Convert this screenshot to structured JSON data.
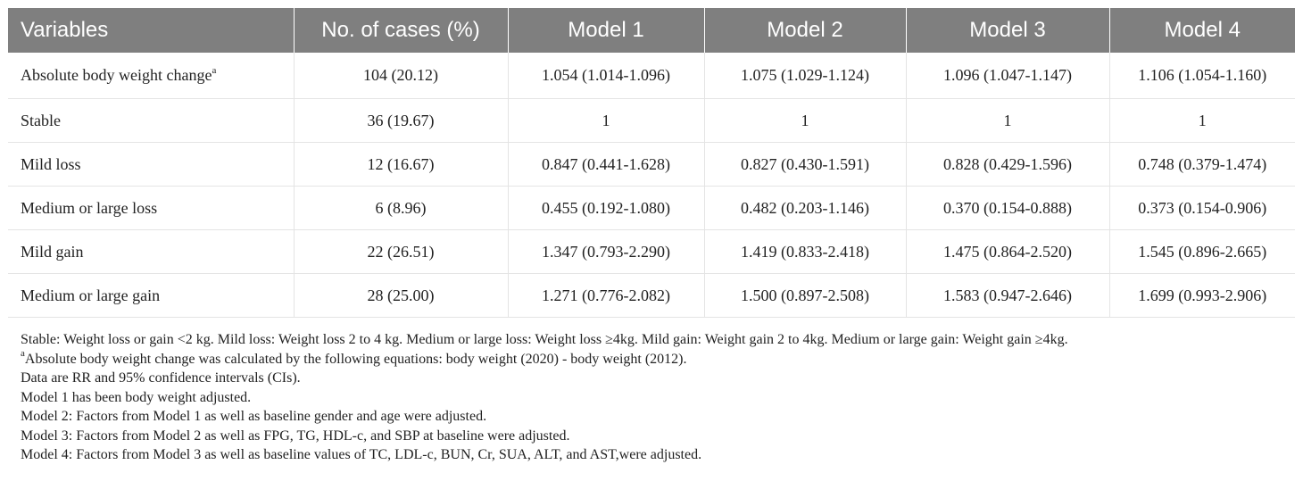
{
  "table": {
    "headers": [
      "Variables",
      "No. of cases (%)",
      "Model 1",
      "Model 2",
      "Model 3",
      "Model 4"
    ],
    "rows": [
      {
        "variable": "Absolute body weight change",
        "sup": "a",
        "cases": "104 (20.12)",
        "m1": "1.054 (1.014-1.096)",
        "m2": "1.075 (1.029-1.124)",
        "m3": "1.096 (1.047-1.147)",
        "m4": "1.106 (1.054-1.160)"
      },
      {
        "variable": "Stable",
        "sup": "",
        "cases": "36 (19.67)",
        "m1": "1",
        "m2": "1",
        "m3": "1",
        "m4": "1"
      },
      {
        "variable": "Mild loss",
        "sup": "",
        "cases": "12 (16.67)",
        "m1": "0.847 (0.441-1.628)",
        "m2": "0.827 (0.430-1.591)",
        "m3": "0.828 (0.429-1.596)",
        "m4": "0.748 (0.379-1.474)"
      },
      {
        "variable": "Medium or large loss",
        "sup": "",
        "cases": "6 (8.96)",
        "m1": "0.455 (0.192-1.080)",
        "m2": "0.482 (0.203-1.146)",
        "m3": "0.370 (0.154-0.888)",
        "m4": "0.373 (0.154-0.906)"
      },
      {
        "variable": "Mild gain",
        "sup": "",
        "cases": "22 (26.51)",
        "m1": "1.347 (0.793-2.290)",
        "m2": "1.419 (0.833-2.418)",
        "m3": "1.475 (0.864-2.520)",
        "m4": "1.545 (0.896-2.665)"
      },
      {
        "variable": "Medium or large gain",
        "sup": "",
        "cases": "28 (25.00)",
        "m1": "1.271 (0.776-2.082)",
        "m2": "1.500 (0.897-2.508)",
        "m3": "1.583 (0.947-2.646)",
        "m4": "1.699 (0.993-2.906)"
      }
    ]
  },
  "footnotes": {
    "line1": "Stable: Weight loss or gain <2 kg. Mild loss: Weight loss 2 to 4 kg. Medium or large loss: Weight loss ≥4kg. Mild gain: Weight gain 2 to 4kg. Medium or large gain: Weight gain ≥4kg.",
    "line2_sup": "a",
    "line2": "Absolute body weight change was calculated by the following equations: body weight (2020) - body weight (2012).",
    "line3": "Data are RR and 95% confidence intervals (CIs).",
    "line4": "Model 1 has been body weight adjusted.",
    "line5": "Model 2: Factors from Model 1 as well as baseline gender and age were adjusted.",
    "line6": "Model 3: Factors from Model 2 as well as FPG, TG, HDL-c, and SBP at baseline were adjusted.",
    "line7": "Model 4: Factors from Model 3 as well as baseline values of TC, LDL-c, BUN, Cr, SUA, ALT, and AST,were adjusted."
  }
}
